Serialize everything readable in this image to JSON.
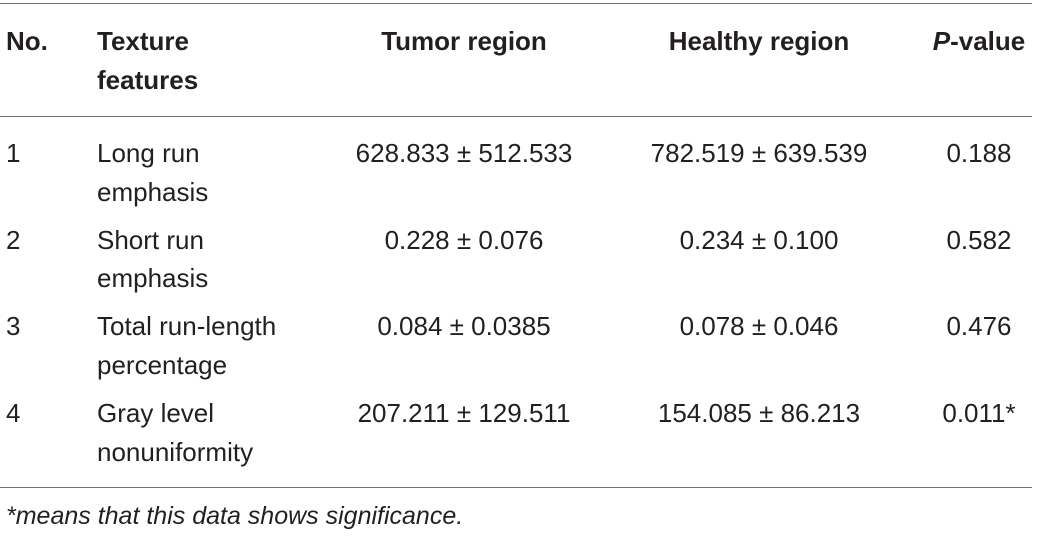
{
  "table": {
    "headers": {
      "no": "No.",
      "feature_line1": "Texture",
      "feature_line2": "features",
      "tumor": "Tumor region",
      "healthy": "Healthy region",
      "p_italic": "P",
      "p_rest": "-value"
    },
    "rows": [
      {
        "no": "1",
        "feature_line1": "Long run",
        "feature_line2": "emphasis",
        "tumor": "628.833 ± 512.533",
        "healthy": "782.519 ± 639.539",
        "p": "0.188"
      },
      {
        "no": "2",
        "feature_line1": "Short run",
        "feature_line2": "emphasis",
        "tumor": "0.228 ± 0.076",
        "healthy": "0.234 ± 0.100",
        "p": "0.582"
      },
      {
        "no": "3",
        "feature_line1": "Total run-length",
        "feature_line2": "percentage",
        "tumor": "0.084 ± 0.0385",
        "healthy": "0.078 ± 0.046",
        "p": "0.476"
      },
      {
        "no": "4",
        "feature_line1": "Gray level",
        "feature_line2": "nonuniformity",
        "tumor": "207.211 ± 129.511",
        "healthy": "154.085 ± 86.213",
        "p": "0.011*"
      }
    ],
    "footnote": "*means that this data shows significance."
  }
}
